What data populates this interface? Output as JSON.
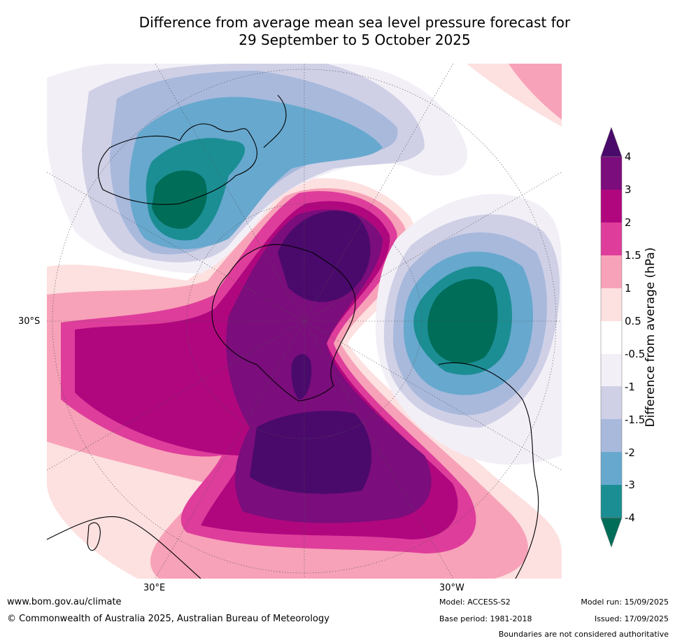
{
  "title": {
    "line1": "Difference from average mean sea level pressure forecast for",
    "line2": "29 September to 5 October 2025"
  },
  "map": {
    "projection": "polar-stereographic-south",
    "lon_labels": [
      "30°E",
      "30°W"
    ],
    "lat_labels": [
      "30°S"
    ]
  },
  "legend": {
    "title": "Difference from average (hPa)",
    "ticks": [
      "4",
      "3",
      "2",
      "1.5",
      "1",
      "0.5",
      "-0.5",
      "-1",
      "-1.5",
      "-2",
      "-3",
      "-4"
    ],
    "colors": [
      "#4a0a6b",
      "#7b0d7c",
      "#b0077f",
      "#de3d9b",
      "#f7a2b8",
      "#fde0e0",
      "#ffffff",
      "#f2eff7",
      "#cfd0e6",
      "#a8b9dc",
      "#67a8ce",
      "#1b8e93",
      "#006d59"
    ]
  },
  "footer": {
    "website": "www.bom.gov.au/climate",
    "copyright": "© Commonwealth of Australia 2025, Australian Bureau of Meteorology",
    "model": "Model: ACCESS-S2",
    "base_period": "Base period: 1981-2018",
    "model_run": "Model run: 15/09/2025",
    "issued": "Issued: 17/09/2025",
    "disclaimer": "Boundaries are not considered authoritative"
  }
}
